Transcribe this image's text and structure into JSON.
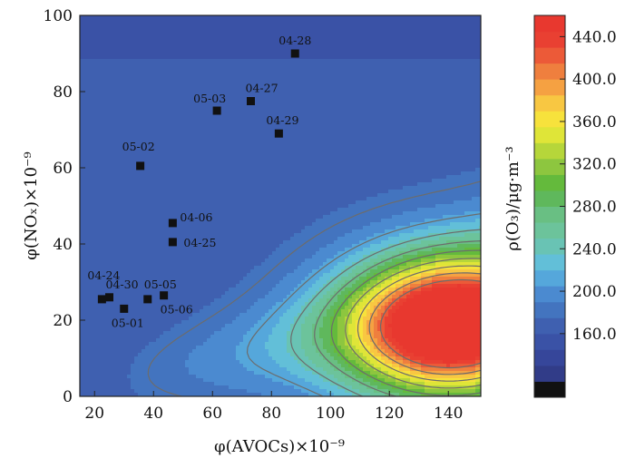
{
  "chart_data": {
    "type": "heatmap",
    "title": "",
    "xlabel": "φ(AVOCs)×10⁻⁹",
    "ylabel": "φ(NOₓ)×10⁻⁹",
    "colorbar_label": "ρ(O₃)/μg·m⁻³",
    "xlim": [
      15,
      151
    ],
    "ylim": [
      0,
      100
    ],
    "x_ticks": [
      "20",
      "40",
      "60",
      "80",
      "100",
      "120",
      "140"
    ],
    "y_ticks": [
      "0",
      "20",
      "40",
      "60",
      "80",
      "100"
    ],
    "colorbar": {
      "range": [
        100,
        460
      ],
      "ticks": [
        "160.0",
        "200.0",
        "240.0",
        "280.0",
        "320.0",
        "360.0",
        "400.0",
        "440.0"
      ],
      "colors": [
        "#111111",
        "#313c88",
        "#36469a",
        "#3a52a6",
        "#3f60b0",
        "#4374bf",
        "#4b8ad0",
        "#55a7db",
        "#62bfd8",
        "#69c3b4",
        "#6cc39b",
        "#69bf83",
        "#5fb85c",
        "#64ba3c",
        "#8dc63f",
        "#b6d63a",
        "#dfe538",
        "#f7e23c",
        "#f8c742",
        "#f5a142",
        "#ef7f3e",
        "#ec5a38",
        "#e94032",
        "#e8382f"
      ]
    },
    "points": [
      {
        "label": "04-28",
        "x": 88,
        "y": 90
      },
      {
        "label": "04-27",
        "x": 73,
        "y": 77.5
      },
      {
        "label": "05-03",
        "x": 61.5,
        "y": 75
      },
      {
        "label": "04-29",
        "x": 82.5,
        "y": 69
      },
      {
        "label": "05-02",
        "x": 35.5,
        "y": 60.5
      },
      {
        "label": "04-06",
        "x": 46.5,
        "y": 45.5
      },
      {
        "label": "04-25",
        "x": 46.5,
        "y": 40.5
      },
      {
        "label": "04-24",
        "x": 22.5,
        "y": 25.5
      },
      {
        "label": "04-30",
        "x": 25,
        "y": 26
      },
      {
        "label": "05-05",
        "x": 38,
        "y": 25.5
      },
      {
        "label": "05-06",
        "x": 43.5,
        "y": 26.5
      },
      {
        "label": "05-01",
        "x": 30,
        "y": 23
      }
    ]
  }
}
